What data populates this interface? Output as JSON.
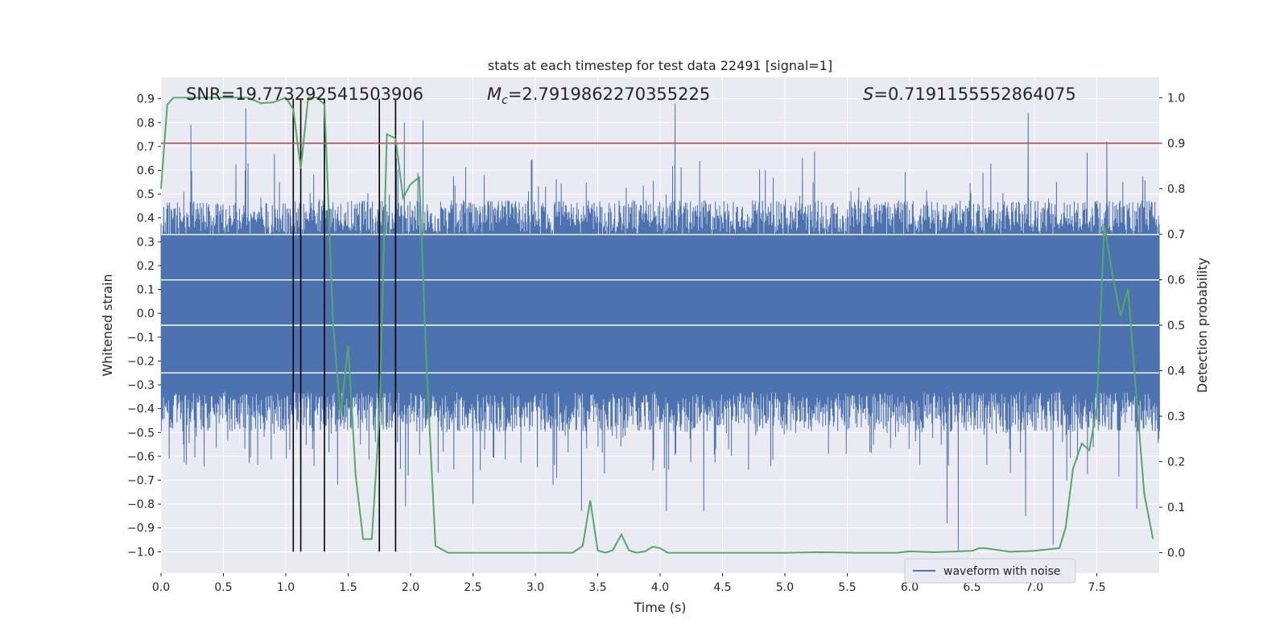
{
  "chart_data": {
    "type": "line",
    "title": "stats at each timestep for test data 22491 [signal=1]",
    "xlabel": "Time (s)",
    "ylabel": "Whitened strain",
    "y2label": "Detection probability",
    "xlim": [
      0.0,
      8.0
    ],
    "ylim": [
      -1.09,
      0.99
    ],
    "y2lim": [
      -0.045,
      1.045
    ],
    "xticks": [
      0.0,
      0.5,
      1.0,
      1.5,
      2.0,
      2.5,
      3.0,
      3.5,
      4.0,
      4.5,
      5.0,
      5.5,
      6.0,
      6.5,
      7.0,
      7.5
    ],
    "xtick_labels": [
      "0.0",
      "0.5",
      "1.0",
      "1.5",
      "2.0",
      "2.5",
      "3.0",
      "3.5",
      "4.0",
      "4.5",
      "5.0",
      "5.5",
      "6.0",
      "6.5",
      "7.0",
      "7.5"
    ],
    "yticks": [
      -1.0,
      -0.9,
      -0.8,
      -0.7,
      -0.6,
      -0.5,
      -0.4,
      -0.3,
      -0.2,
      -0.1,
      0.0,
      0.1,
      0.2,
      0.3,
      0.4,
      0.5,
      0.6,
      0.7,
      0.8,
      0.9
    ],
    "ytick_labels": [
      "−1.0",
      "−0.9",
      "−0.8",
      "−0.7",
      "−0.6",
      "−0.5",
      "−0.4",
      "−0.3",
      "−0.2",
      "−0.1",
      "0.0",
      "0.1",
      "0.2",
      "0.3",
      "0.4",
      "0.5",
      "0.6",
      "0.7",
      "0.8",
      "0.9"
    ],
    "y2ticks": [
      0.0,
      0.1,
      0.2,
      0.3,
      0.4,
      0.5,
      0.6,
      0.7,
      0.8,
      0.9,
      1.0
    ],
    "y2tick_labels": [
      "0.0",
      "0.1",
      "0.2",
      "0.3",
      "0.4",
      "0.5",
      "0.6",
      "0.7",
      "0.8",
      "0.9",
      "1.0"
    ],
    "annotations": {
      "snr": "SNR=19.773292541503906",
      "mc_symbol": "M",
      "mc_sub": "c",
      "mc_value": "=2.7919862270355225",
      "s_symbol": "S",
      "s_value": "=0.7191155552864075"
    },
    "legend": {
      "label": "waveform with noise",
      "placement": "lower-right"
    },
    "threshold": {
      "value": 0.9,
      "axis": "y2",
      "color": "#c44e52"
    },
    "vertical_markers": {
      "x": [
        1.06,
        1.12,
        1.31,
        1.75,
        1.88
      ],
      "y_from": -1.0,
      "y_to": 0.9
    },
    "waveform": {
      "name": "waveform with noise",
      "color": "#4c72b0",
      "duration_s": 8.0,
      "samples": 1400,
      "envelope": {
        "core": 0.33,
        "typical_peak": 0.45,
        "max_peak": 0.88,
        "min_trough": -1.0
      },
      "spikes": [
        {
          "x": 0.24,
          "y": 0.79
        },
        {
          "x": 0.68,
          "y": 0.86
        },
        {
          "x": 1.95,
          "y": 0.8
        },
        {
          "x": 2.1,
          "y": 0.81
        },
        {
          "x": 4.12,
          "y": 0.88
        },
        {
          "x": 6.95,
          "y": 0.84
        },
        {
          "x": 7.58,
          "y": 0.72
        },
        {
          "x": 2.5,
          "y": -0.8
        },
        {
          "x": 3.37,
          "y": -0.83
        },
        {
          "x": 4.05,
          "y": -0.83
        },
        {
          "x": 4.35,
          "y": -0.83
        },
        {
          "x": 6.3,
          "y": -0.88
        },
        {
          "x": 6.39,
          "y": -1.0
        },
        {
          "x": 6.93,
          "y": -0.85
        },
        {
          "x": 7.15,
          "y": -0.97
        },
        {
          "x": 7.82,
          "y": -0.82
        },
        {
          "x": 1.96,
          "y": -0.81
        }
      ]
    },
    "series": [
      {
        "name": "Detection probability",
        "axis": "y2",
        "color": "#55a868",
        "x": [
          0.0,
          0.05,
          0.1,
          0.2,
          0.3,
          0.5,
          0.7,
          0.8,
          0.9,
          1.0,
          1.06,
          1.12,
          1.18,
          1.25,
          1.31,
          1.38,
          1.44,
          1.5,
          1.56,
          1.62,
          1.69,
          1.75,
          1.81,
          1.88,
          1.94,
          2.0,
          2.07,
          2.13,
          2.2,
          2.3,
          2.5,
          2.8,
          3.0,
          3.2,
          3.3,
          3.38,
          3.44,
          3.5,
          3.56,
          3.62,
          3.69,
          3.75,
          3.81,
          3.88,
          3.94,
          4.0,
          4.06,
          4.2,
          4.6,
          5.0,
          5.3,
          5.6,
          5.9,
          6.0,
          6.2,
          6.4,
          6.5,
          6.56,
          6.6,
          6.8,
          7.0,
          7.2,
          7.25,
          7.31,
          7.38,
          7.44,
          7.5,
          7.56,
          7.62,
          7.69,
          7.75,
          7.81,
          7.88,
          7.95
        ],
        "values": [
          0.8,
          0.985,
          1.0,
          1.0,
          1.0,
          1.0,
          1.0,
          0.988,
          0.99,
          1.0,
          0.975,
          0.845,
          1.0,
          1.0,
          0.985,
          0.5,
          0.3,
          0.455,
          0.17,
          0.03,
          0.03,
          0.3,
          0.92,
          0.91,
          0.78,
          0.81,
          0.825,
          0.4,
          0.015,
          0.0,
          0.0,
          0.0,
          0.0,
          0.0,
          0.0,
          0.015,
          0.115,
          0.005,
          0.0,
          0.005,
          0.04,
          0.005,
          0.0,
          0.003,
          0.013,
          0.01,
          0.0,
          0.0,
          0.0,
          0.0,
          0.001,
          0.0,
          0.0,
          0.003,
          0.001,
          0.003,
          0.004,
          0.01,
          0.01,
          0.002,
          0.004,
          0.01,
          0.055,
          0.185,
          0.24,
          0.225,
          0.32,
          0.72,
          0.62,
          0.52,
          0.58,
          0.37,
          0.13,
          0.03
        ]
      }
    ]
  }
}
